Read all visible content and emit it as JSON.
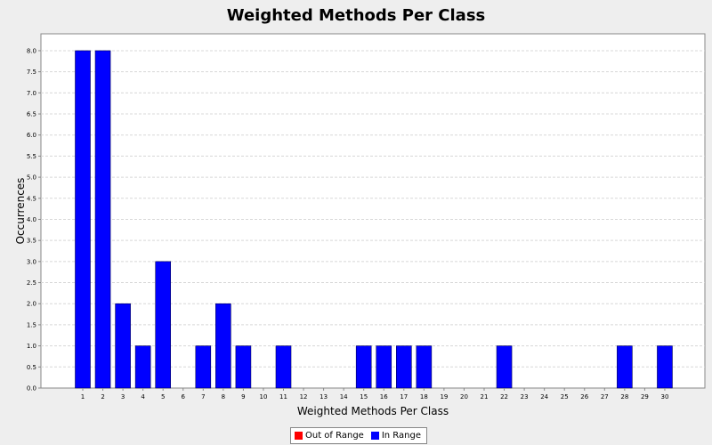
{
  "chart_data": {
    "type": "bar",
    "title": "Weighted Methods Per Class",
    "xlabel": "Weighted Methods Per Class",
    "ylabel": "Occurrences",
    "categories": [
      "1",
      "2",
      "3",
      "4",
      "5",
      "6",
      "7",
      "8",
      "9",
      "10",
      "11",
      "12",
      "13",
      "14",
      "15",
      "16",
      "17",
      "18",
      "19",
      "20",
      "21",
      "22",
      "23",
      "24",
      "25",
      "26",
      "27",
      "28",
      "29",
      "30"
    ],
    "series": [
      {
        "name": "In Range",
        "color": "#0000ff",
        "values": [
          8,
          8,
          2,
          1,
          3,
          0,
          1,
          2,
          1,
          0,
          1,
          0,
          0,
          0,
          1,
          1,
          1,
          1,
          0,
          0,
          0,
          1,
          0,
          0,
          0,
          0,
          0,
          1,
          0,
          1
        ]
      }
    ],
    "ylim": [
      0,
      8.4
    ],
    "yticks": [
      0.0,
      0.5,
      1.0,
      1.5,
      2.0,
      2.5,
      3.0,
      3.5,
      4.0,
      4.5,
      5.0,
      5.5,
      6.0,
      6.5,
      7.0,
      7.5,
      8.0
    ],
    "grid": true,
    "legend": {
      "placement": "bottom",
      "entries": [
        {
          "label": "Out of Range",
          "color": "#ff0000"
        },
        {
          "label": "In Range",
          "color": "#0000ff"
        }
      ]
    }
  }
}
